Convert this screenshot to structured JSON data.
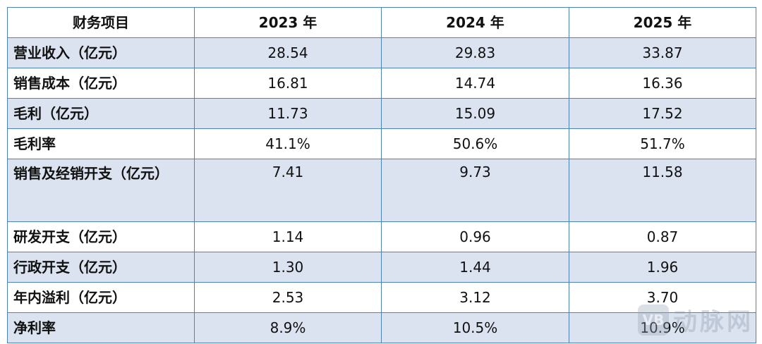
{
  "table": {
    "headers": [
      "财务项目",
      "2023 年",
      "2024 年",
      "2025 年"
    ],
    "rows": [
      {
        "label": "营业收入（亿元）",
        "values": [
          "28.54",
          "29.83",
          "33.87"
        ]
      },
      {
        "label": "销售成本（亿元）",
        "values": [
          "16.81",
          "14.74",
          "16.36"
        ]
      },
      {
        "label": "毛利（亿元）",
        "values": [
          "11.73",
          "15.09",
          "17.52"
        ]
      },
      {
        "label": "毛利率",
        "values": [
          "41.1%",
          "50.6%",
          "51.7%"
        ]
      },
      {
        "label": "销售及经销开支（亿元）",
        "values": [
          "7.41",
          "9.73",
          "11.58"
        ]
      },
      {
        "label": "研发开支（亿元）",
        "values": [
          "1.14",
          "0.96",
          "0.87"
        ]
      },
      {
        "label": "行政开支（亿元）",
        "values": [
          "1.30",
          "1.44",
          "1.96"
        ]
      },
      {
        "label": "年内溢利（亿元）",
        "values": [
          "2.53",
          "3.12",
          "3.70"
        ]
      },
      {
        "label": "净利率",
        "values": [
          "8.9%",
          "10.5%",
          "10.9%"
        ]
      }
    ]
  },
  "colors": {
    "border": "#4f81bd",
    "shade": "#dbe3f0"
  },
  "watermark": {
    "logo_icon": "vb-logo-icon",
    "text": "动脉网"
  }
}
